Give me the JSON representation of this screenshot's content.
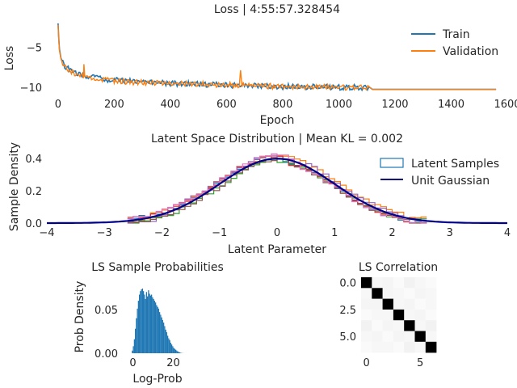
{
  "chart_data": [
    {
      "id": "loss",
      "type": "line",
      "title": "Loss | 4:55:57.328454",
      "xlabel": "Epoch",
      "ylabel": "Loss",
      "xlim": [
        -40,
        1600
      ],
      "ylim": [
        -11,
        -1.5
      ],
      "xticks": [
        "0",
        "200",
        "400",
        "600",
        "800",
        "1000",
        "1200",
        "1400",
        "1600"
      ],
      "yticks": [
        "−5",
        "−10"
      ],
      "legend": "top-right",
      "grid": false,
      "series": [
        {
          "name": "Train",
          "color": "#1f77b4",
          "x": [
            0,
            2,
            5,
            10,
            20,
            40,
            70,
            100,
            150,
            200,
            300,
            400,
            500,
            600,
            700,
            800,
            900,
            1000,
            1110,
            1120,
            1200,
            1300,
            1400,
            1500,
            1560
          ],
          "y": [
            -2.0,
            -3.6,
            -5.2,
            -6.3,
            -7.2,
            -7.8,
            -8.3,
            -8.6,
            -8.9,
            -9.1,
            -9.3,
            -9.5,
            -9.6,
            -9.7,
            -9.8,
            -9.9,
            -9.95,
            -10.0,
            -10.0,
            -10.25,
            -10.25,
            -10.25,
            -10.25,
            -10.25,
            -10.25
          ]
        },
        {
          "name": "Validation",
          "color": "#ff7f0e",
          "x": [
            0,
            2,
            5,
            10,
            20,
            40,
            70,
            90,
            92,
            95,
            100,
            150,
            200,
            300,
            400,
            500,
            600,
            645,
            650,
            655,
            700,
            800,
            900,
            1000,
            1110,
            1120,
            1200,
            1300,
            1400,
            1500,
            1560
          ],
          "y": [
            -2.2,
            -3.8,
            -5.4,
            -6.5,
            -7.3,
            -7.9,
            -8.4,
            -8.6,
            -6.8,
            -8.6,
            -8.7,
            -9.0,
            -9.2,
            -9.4,
            -9.5,
            -9.6,
            -9.7,
            -9.7,
            -8.2,
            -9.7,
            -9.8,
            -9.9,
            -9.95,
            -10.0,
            -10.0,
            -10.25,
            -10.25,
            -10.25,
            -10.25,
            -10.25,
            -10.25
          ]
        }
      ]
    },
    {
      "id": "latent",
      "type": "line",
      "title": "Latent Space Distribution | Mean KL = 0.002",
      "xlabel": "Latent Parameter",
      "ylabel": "Sample Density",
      "xlim": [
        -4,
        4
      ],
      "ylim": [
        0,
        0.45
      ],
      "xticks": [
        "−4",
        "−3",
        "−2",
        "−1",
        "0",
        "1",
        "2",
        "3",
        "4"
      ],
      "yticks": [
        "0.0",
        "0.2",
        "0.4"
      ],
      "legend": "top-right",
      "grid": false,
      "series": [
        {
          "name": "Latent Samples",
          "kind": "step-histograms",
          "colors": [
            "#1f77b4",
            "#ff7f0e",
            "#2ca02c",
            "#d62728",
            "#9467bd",
            "#8c564b",
            "#e377c2"
          ],
          "range": [
            -2.6,
            2.6
          ]
        },
        {
          "name": "Unit Gaussian",
          "kind": "pdf",
          "color": "#00008b",
          "mean": 0,
          "std": 1
        }
      ]
    },
    {
      "id": "ls-prob",
      "type": "bar",
      "title": "LS Sample Probabilities",
      "xlabel": "Log-Prob",
      "ylabel": "Prob Density",
      "xlim": [
        -5,
        29
      ],
      "ylim": [
        0,
        0.085
      ],
      "xticks": [
        "0",
        "20"
      ],
      "yticks": [
        "0.00",
        "0.05"
      ],
      "color": "#1f77b4",
      "bin_start": -0.5,
      "bin_width": 0.5,
      "values": [
        0.003,
        0.008,
        0.016,
        0.028,
        0.04,
        0.051,
        0.06,
        0.067,
        0.071,
        0.073,
        0.074,
        0.071,
        0.067,
        0.062,
        0.07,
        0.065,
        0.072,
        0.068,
        0.066,
        0.067,
        0.064,
        0.062,
        0.06,
        0.058,
        0.055,
        0.053,
        0.051,
        0.047,
        0.044,
        0.041,
        0.038,
        0.035,
        0.031,
        0.027,
        0.024,
        0.02,
        0.017,
        0.015,
        0.012,
        0.01,
        0.008,
        0.006,
        0.005,
        0.004,
        0.003,
        0.002,
        0.0015,
        0.001,
        0.0005,
        0.0002,
        0.0001,
        5e-05,
        2e-05,
        1e-05,
        5e-06
      ]
    },
    {
      "id": "ls-corr",
      "type": "heatmap",
      "title": "LS Correlation",
      "xticks": [
        "0",
        "5"
      ],
      "yticks": [
        "0.0",
        "2.5",
        "5.0"
      ],
      "xlim": [
        -0.5,
        6.5
      ],
      "ylim": [
        -0.5,
        6.5
      ],
      "colormap": "grayscale, 1 = black",
      "cells": [
        [
          1.0,
          0.03,
          0.04,
          0.02,
          0.05,
          0.03,
          0.02
        ],
        [
          0.03,
          1.0,
          0.04,
          0.03,
          0.02,
          0.04,
          0.03
        ],
        [
          0.04,
          0.04,
          1.0,
          0.03,
          0.04,
          0.02,
          0.03
        ],
        [
          0.02,
          0.03,
          0.03,
          1.0,
          0.03,
          0.04,
          0.02
        ],
        [
          0.05,
          0.02,
          0.04,
          0.03,
          1.0,
          0.03,
          0.05
        ],
        [
          0.03,
          0.04,
          0.02,
          0.04,
          0.03,
          1.0,
          0.03
        ],
        [
          0.02,
          0.03,
          0.03,
          0.02,
          0.05,
          0.03,
          1.0
        ]
      ]
    }
  ]
}
